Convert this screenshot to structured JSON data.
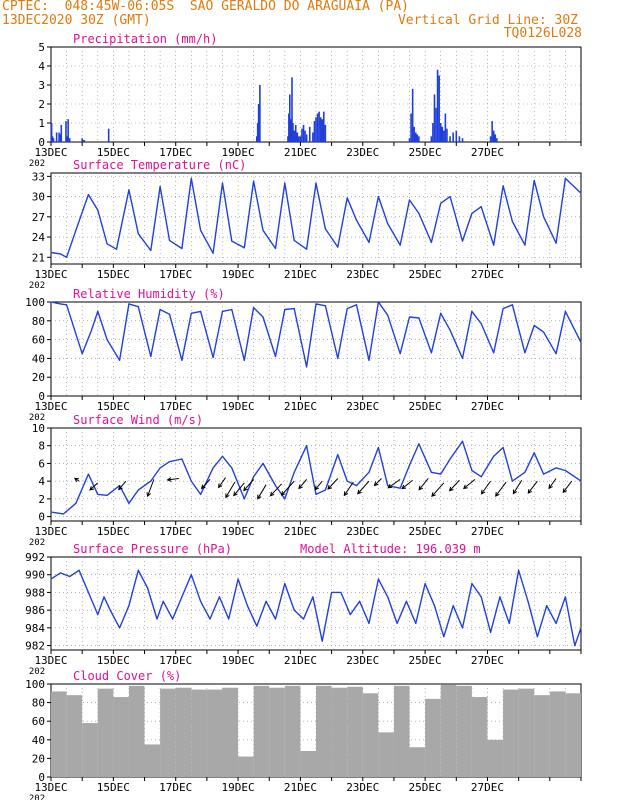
{
  "header": {
    "line1": "CPTEC:  048:45W-06:05S  SAO GERALDO DO ARAGUAIA (PA)",
    "line2": "13DEC2020 30Z (GMT)",
    "grid_note": "Vertical Grid Line: 30Z",
    "code": "TQ0126L028"
  },
  "x_axis": {
    "ticks": [
      "13DEC",
      "15DEC",
      "17DEC",
      "19DEC",
      "21DEC",
      "23DEC",
      "25DEC",
      "27DEC"
    ],
    "year_label": "202"
  },
  "colors": {
    "line": "#2040e0",
    "bar": "#1f3fd8",
    "cloud": "#a8a8a8",
    "title": "#e0109a",
    "header": "#e07a10",
    "grid": "#888888"
  },
  "chart_data": [
    {
      "id": "precip",
      "type": "bar",
      "title": "Precipitation (mm/h)",
      "ylim": [
        0,
        5
      ],
      "yticks": [
        0,
        1,
        2,
        3,
        4,
        5
      ],
      "grid": true,
      "x": [
        0.02,
        0.05,
        0.08,
        0.18,
        0.26,
        0.3,
        0.33,
        0.48,
        0.52,
        0.55,
        0.6,
        1.0,
        1.04,
        1.07,
        1.85,
        6.6,
        6.63,
        6.66,
        6.7,
        7.6,
        7.63,
        7.66,
        7.7,
        7.73,
        7.76,
        7.8,
        7.85,
        7.9,
        7.95,
        8.0,
        8.05,
        8.1,
        8.15,
        8.2,
        8.3,
        8.4,
        8.45,
        8.5,
        8.55,
        8.6,
        8.65,
        8.7,
        8.75,
        8.8,
        11.5,
        11.55,
        11.6,
        11.65,
        11.7,
        11.75,
        11.8,
        12.2,
        12.25,
        12.3,
        12.35,
        12.4,
        12.45,
        12.5,
        12.55,
        12.6,
        12.65,
        12.7,
        12.8,
        12.9,
        13.0,
        13.1,
        13.2,
        14.1,
        14.15,
        14.2,
        14.25,
        14.3
      ],
      "values": [
        1.0,
        0.3,
        0.2,
        0.5,
        0.5,
        0.4,
        0.9,
        1.1,
        0.3,
        1.2,
        0.2,
        0.2,
        0.1,
        0.1,
        0.7,
        0.3,
        1.0,
        2.0,
        3.0,
        0.3,
        1.5,
        2.5,
        1.2,
        3.4,
        1.0,
        0.6,
        0.9,
        0.5,
        0.3,
        0.3,
        0.7,
        0.9,
        0.6,
        0.4,
        0.8,
        0.5,
        1.1,
        1.3,
        1.5,
        1.6,
        1.3,
        1.2,
        1.6,
        0.9,
        0.2,
        1.5,
        2.8,
        0.8,
        0.5,
        0.4,
        0.3,
        0.3,
        1.0,
        2.5,
        1.8,
        3.8,
        3.5,
        1.0,
        0.8,
        0.6,
        1.5,
        0.7,
        0.3,
        0.5,
        0.6,
        0.3,
        0.2,
        0.3,
        1.1,
        0.6,
        0.4,
        0.2
      ]
    },
    {
      "id": "temp",
      "type": "line",
      "title": "Surface Temperature (nC)",
      "ylim": [
        20,
        33.5
      ],
      "yticks": [
        21,
        24,
        27,
        30,
        33
      ],
      "grid": true,
      "x": [
        0,
        0.3,
        0.5,
        0.8,
        1.2,
        1.5,
        1.8,
        2.1,
        2.5,
        2.8,
        3.2,
        3.5,
        3.8,
        4.2,
        4.5,
        4.8,
        5.2,
        5.5,
        5.8,
        6.2,
        6.5,
        6.8,
        7.2,
        7.5,
        7.8,
        8.2,
        8.5,
        8.8,
        9.2,
        9.5,
        9.8,
        10.2,
        10.5,
        10.8,
        11.2,
        11.5,
        11.8,
        12.2,
        12.5,
        12.8,
        13.2,
        13.5,
        13.8,
        14.2,
        14.5,
        14.8,
        15.2,
        15.5,
        15.8,
        16.2,
        16.5,
        17.0
      ],
      "values": [
        21.7,
        21.5,
        21.0,
        25.0,
        30.3,
        28.0,
        23.0,
        22.2,
        31.0,
        24.5,
        22.0,
        31.5,
        23.5,
        22.3,
        32.7,
        25.0,
        21.6,
        32.0,
        23.4,
        22.4,
        32.3,
        25.0,
        22.3,
        32.0,
        23.5,
        22.2,
        32.0,
        25.2,
        22.5,
        29.8,
        26.5,
        23.2,
        30.0,
        26.0,
        22.8,
        29.5,
        27.5,
        23.2,
        29.0,
        30.0,
        23.4,
        27.5,
        28.5,
        22.8,
        31.6,
        26.3,
        22.8,
        32.4,
        27.0,
        23.1,
        32.7,
        30.5
      ]
    },
    {
      "id": "rh",
      "type": "line",
      "title": "Relative Humidity (%)",
      "ylim": [
        0,
        100
      ],
      "yticks": [
        0,
        20,
        40,
        60,
        80,
        100
      ],
      "grid": true,
      "x": [
        0,
        0.3,
        0.5,
        1.0,
        1.3,
        1.5,
        1.8,
        2.2,
        2.5,
        2.8,
        3.2,
        3.5,
        3.8,
        4.2,
        4.5,
        4.8,
        5.2,
        5.5,
        5.8,
        6.2,
        6.5,
        6.8,
        7.2,
        7.5,
        7.8,
        8.2,
        8.5,
        8.8,
        9.2,
        9.5,
        9.8,
        10.2,
        10.5,
        10.8,
        11.2,
        11.5,
        11.8,
        12.2,
        12.5,
        12.8,
        13.2,
        13.5,
        13.8,
        14.2,
        14.5,
        14.8,
        15.2,
        15.5,
        15.8,
        16.2,
        16.5,
        17.0
      ],
      "values": [
        100,
        98,
        97,
        45,
        70,
        90,
        60,
        38,
        98,
        95,
        42,
        92,
        87,
        38,
        88,
        90,
        41,
        90,
        92,
        38,
        94,
        84,
        42,
        92,
        93,
        31,
        98,
        96,
        40,
        93,
        97,
        38,
        100,
        86,
        45,
        84,
        83,
        46,
        88,
        70,
        40,
        90,
        77,
        46,
        93,
        97,
        46,
        75,
        68,
        45,
        90,
        57
      ]
    },
    {
      "id": "wind",
      "type": "line",
      "title": "Surface Wind (m/s)",
      "ylim": [
        -0.5,
        10
      ],
      "yticks": [
        0,
        2,
        4,
        6,
        8,
        10
      ],
      "grid": true,
      "x": [
        0,
        0.4,
        0.8,
        1.2,
        1.5,
        1.8,
        2.2,
        2.5,
        2.8,
        3.2,
        3.5,
        3.8,
        4.2,
        4.5,
        4.8,
        5.2,
        5.5,
        5.8,
        6.2,
        6.5,
        6.8,
        7.2,
        7.5,
        7.8,
        8.2,
        8.5,
        8.8,
        9.2,
        9.5,
        9.8,
        10.2,
        10.5,
        10.8,
        11.2,
        11.5,
        11.8,
        12.2,
        12.5,
        12.8,
        13.2,
        13.5,
        13.8,
        14.2,
        14.5,
        14.8,
        15.2,
        15.5,
        15.8,
        16.2,
        16.5,
        17.0
      ],
      "values": [
        0.5,
        0.3,
        1.5,
        4.8,
        2.5,
        2.4,
        3.5,
        1.5,
        3.0,
        4.0,
        5.5,
        6.2,
        6.5,
        4.0,
        2.5,
        5.5,
        6.8,
        5.5,
        2.0,
        4.5,
        6.0,
        3.5,
        2.0,
        5.0,
        8.0,
        2.5,
        3.0,
        7.0,
        4.0,
        3.5,
        5.0,
        7.8,
        3.5,
        3.2,
        5.8,
        8.2,
        5.0,
        4.8,
        6.5,
        8.5,
        5.2,
        4.5,
        6.8,
        7.8,
        4.0,
        5.0,
        7.2,
        4.8,
        5.5,
        5.2,
        4.0
      ],
      "arrows_x": [
        0.9,
        1.5,
        2.4,
        3.3,
        4.1,
        5.1,
        5.6,
        5.9,
        6.2,
        6.5,
        6.9,
        7.4,
        7.8,
        8.2,
        8.7,
        9.2,
        9.7,
        10.2,
        10.6,
        11.2,
        11.6,
        12.1,
        12.6,
        13.1,
        13.6,
        14.1,
        14.6,
        15.1,
        15.6,
        16.2,
        16.7
      ],
      "arrows_y": [
        4.0,
        3.8,
        4.0,
        4.2,
        4.3,
        4.2,
        4.4,
        3.9,
        3.8,
        4.2,
        3.6,
        3.7,
        4.0,
        4.2,
        4.0,
        4.3,
        3.9,
        4.0,
        4.3,
        4.2,
        4.1,
        4.3,
        3.8,
        4.1,
        4.2,
        4.0,
        3.9,
        4.1,
        4.0,
        4.3,
        4.0
      ],
      "arrows_u": [
        -0.6,
        -1.1,
        -1.0,
        -0.9,
        -1.6,
        -1.2,
        -1.0,
        -1.3,
        -1.5,
        -1.4,
        -1.2,
        -1.6,
        -1.8,
        -1.1,
        -1.0,
        -1.4,
        -1.3,
        -1.6,
        -1.0,
        -1.7,
        -1.5,
        -1.3,
        -1.7,
        -1.4,
        -1.6,
        -1.3,
        -1.5,
        -1.2,
        -1.3,
        -1.0,
        -1.2
      ],
      "arrows_v": [
        0.4,
        -1.0,
        -1.2,
        -2.4,
        -0.2,
        -1.3,
        -1.4,
        -2.2,
        -1.8,
        -1.6,
        -2.0,
        -1.7,
        -2.0,
        -1.3,
        -1.2,
        -1.5,
        -1.9,
        -1.8,
        -1.0,
        -1.2,
        -1.2,
        -1.6,
        -1.9,
        -1.5,
        -1.3,
        -1.8,
        -2.0,
        -1.9,
        -1.7,
        -1.4,
        -1.6
      ]
    },
    {
      "id": "press",
      "type": "line",
      "title": "Surface Pressure (hPa)",
      "annotation": "Model Altitude: 196.039 m",
      "ylim": [
        981.5,
        992
      ],
      "yticks": [
        982,
        984,
        986,
        988,
        990,
        992
      ],
      "grid": true,
      "x": [
        0,
        0.3,
        0.6,
        0.9,
        1.2,
        1.5,
        1.7,
        1.9,
        2.2,
        2.5,
        2.8,
        3.1,
        3.4,
        3.6,
        3.9,
        4.2,
        4.5,
        4.8,
        5.1,
        5.4,
        5.7,
        6.0,
        6.3,
        6.6,
        6.9,
        7.2,
        7.5,
        7.8,
        8.1,
        8.4,
        8.7,
        9.0,
        9.3,
        9.6,
        9.9,
        10.2,
        10.5,
        10.8,
        11.1,
        11.4,
        11.7,
        12.0,
        12.3,
        12.6,
        12.9,
        13.2,
        13.5,
        13.8,
        14.1,
        14.4,
        14.7,
        15.0,
        15.3,
        15.6,
        15.9,
        16.2,
        16.5,
        16.8,
        17.0
      ],
      "values": [
        989.5,
        990.2,
        989.8,
        990.5,
        988.0,
        985.5,
        987.5,
        986.0,
        984.0,
        986.5,
        990.5,
        988.5,
        985.0,
        987.0,
        985.0,
        987.5,
        990.0,
        987.0,
        985.0,
        987.5,
        985.0,
        989.5,
        986.5,
        984.2,
        987.0,
        985.0,
        989.0,
        986.0,
        985.0,
        987.5,
        982.5,
        988.0,
        988.0,
        985.5,
        987.0,
        984.5,
        989.5,
        987.5,
        984.5,
        987.0,
        984.5,
        989.0,
        986.5,
        983.0,
        986.5,
        984.0,
        989.0,
        987.5,
        983.5,
        987.5,
        984.5,
        990.5,
        987.0,
        983.0,
        986.5,
        984.5,
        987.5,
        982.0,
        984.0
      ]
    },
    {
      "id": "cloud",
      "type": "bar",
      "title": "Cloud Cover (%)",
      "ylim": [
        0,
        100
      ],
      "yticks": [
        0,
        20,
        40,
        60,
        80,
        100
      ],
      "grid": true,
      "x": [
        0.0,
        0.5,
        1.0,
        1.5,
        2.0,
        2.5,
        3.0,
        3.5,
        4.0,
        4.5,
        5.0,
        5.5,
        6.0,
        6.5,
        7.0,
        7.5,
        8.0,
        8.5,
        9.0,
        9.5,
        10.0,
        10.5,
        11.0,
        11.5,
        12.0,
        12.5,
        13.0,
        13.5,
        14.0,
        14.5,
        15.0,
        15.5,
        16.0,
        16.5,
        17.0
      ],
      "values": [
        92,
        88,
        58,
        95,
        86,
        98,
        35,
        95,
        96,
        94,
        94,
        96,
        22,
        98,
        96,
        98,
        28,
        98,
        96,
        97,
        90,
        48,
        98,
        32,
        84,
        99,
        98,
        86,
        40,
        94,
        95,
        88,
        92,
        90,
        92
      ],
      "bar_width": 0.5
    }
  ]
}
